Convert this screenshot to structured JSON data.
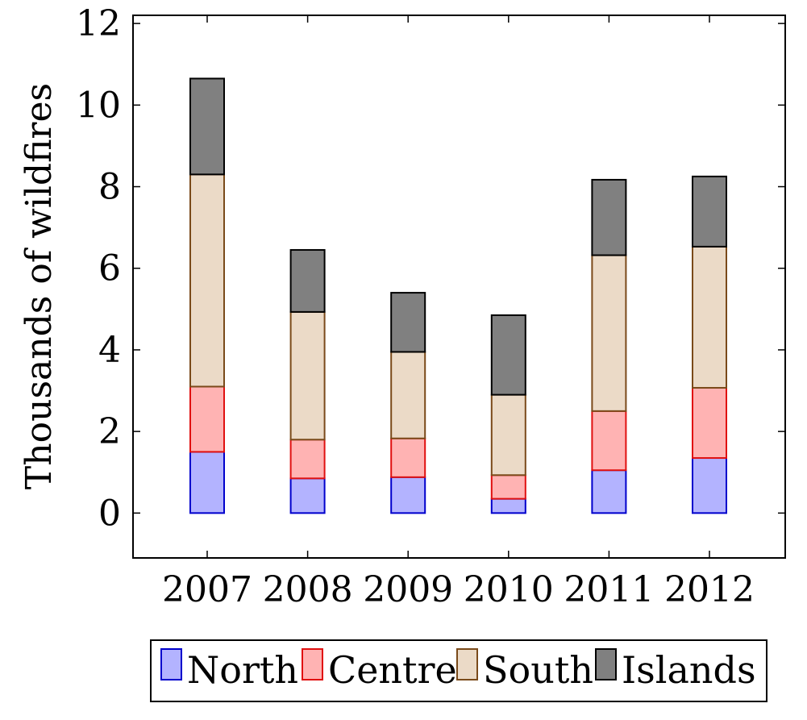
{
  "chart_data": {
    "type": "bar",
    "stacked": true,
    "title": "",
    "xlabel": "",
    "ylabel": "Thousands of wildfires",
    "categories": [
      "2007",
      "2008",
      "2009",
      "2010",
      "2011",
      "2012"
    ],
    "ylim": [
      -1.1,
      12.2
    ],
    "yticks": [
      0,
      2,
      4,
      6,
      8,
      10,
      12
    ],
    "grid": false,
    "legend_position": "bottom",
    "series": [
      {
        "name": "North",
        "fill": "#b3b3ff",
        "stroke": "#0000cc",
        "values": [
          1.5,
          0.85,
          0.88,
          0.35,
          1.05,
          1.35
        ]
      },
      {
        "name": "Centre",
        "fill": "#ffb3b3",
        "stroke": "#e01010",
        "values": [
          1.6,
          0.95,
          0.95,
          0.58,
          1.45,
          1.72
        ]
      },
      {
        "name": "South",
        "fill": "#ebdac7",
        "stroke": "#7a4a1a",
        "values": [
          5.2,
          3.13,
          2.12,
          1.97,
          3.82,
          3.46
        ]
      },
      {
        "name": "Islands",
        "fill": "#808080",
        "stroke": "#000000",
        "values": [
          2.35,
          1.52,
          1.45,
          1.95,
          1.85,
          1.72
        ]
      }
    ]
  }
}
